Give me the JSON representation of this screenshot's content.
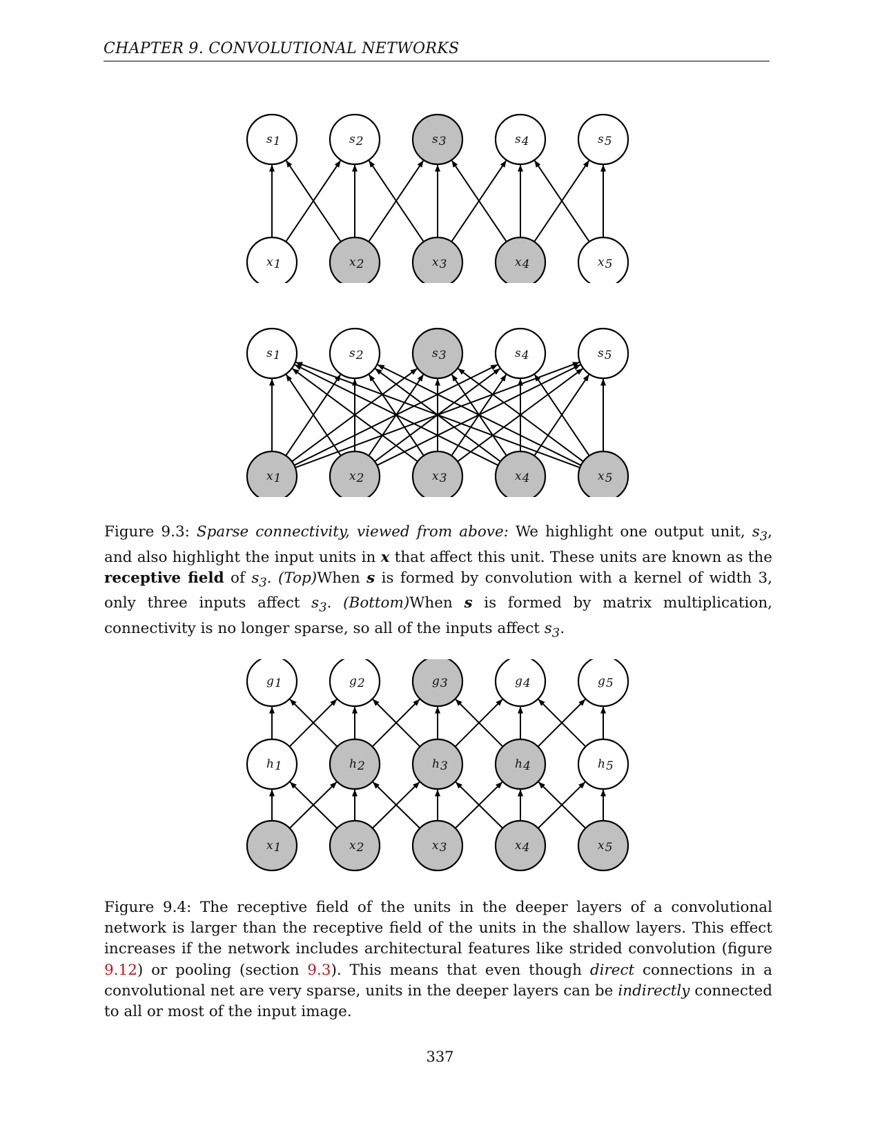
{
  "header": {
    "chapter": "CHAPTER 9.   CONVOLUTIONAL NETWORKS"
  },
  "colors": {
    "highlight_fill": "#c0c0c0",
    "plain_fill": "#ffffff",
    "stroke": "#000000",
    "link": "#c4141f"
  },
  "figure_9_3": {
    "top": {
      "output_letter": "s",
      "input_letter": "x",
      "indices": [
        "1",
        "2",
        "3",
        "4",
        "5"
      ],
      "highlighted_outputs": [
        3
      ],
      "highlighted_inputs": [
        2,
        3,
        4
      ],
      "connectivity": "kernel-width-3"
    },
    "bottom": {
      "output_letter": "s",
      "input_letter": "x",
      "indices": [
        "1",
        "2",
        "3",
        "4",
        "5"
      ],
      "highlighted_outputs": [
        3
      ],
      "highlighted_inputs": [
        1,
        2,
        3,
        4,
        5
      ],
      "connectivity": "full"
    },
    "caption": {
      "label": "Figure 9.3:",
      "italic_title": "Sparse connectivity, viewed from above:",
      "t1": " We highlight one output unit, ",
      "t2": ", and also highlight the input units in ",
      "t3": " that affect this unit. These units are known as the ",
      "bold": "receptive field",
      "t4": " of ",
      "t5": ". ",
      "top_tag": "(Top)",
      "t6": "When ",
      "t7": " is formed by convolution with a kernel of width 3, only three inputs affect ",
      "t8": ". ",
      "bottom_tag": "(Bottom)",
      "t9": "When ",
      "t10": " is formed by matrix multiplication, connectivity is no longer sparse, so all of the inputs affect ",
      "t11": ".",
      "sym_s3": "s",
      "sym_s3_sub": "3",
      "sym_x": "x",
      "sym_s": "s"
    }
  },
  "figure_9_4": {
    "layers": [
      {
        "letter": "g",
        "indices": [
          "1",
          "2",
          "3",
          "4",
          "5"
        ],
        "highlighted": [
          3
        ]
      },
      {
        "letter": "h",
        "indices": [
          "1",
          "2",
          "3",
          "4",
          "5"
        ],
        "highlighted": [
          2,
          3,
          4
        ]
      },
      {
        "letter": "x",
        "indices": [
          "1",
          "2",
          "3",
          "4",
          "5"
        ],
        "highlighted": [
          1,
          2,
          3,
          4,
          5
        ]
      }
    ],
    "caption": {
      "label": "Figure 9.4:",
      "t1": " The receptive field of the units in the deeper layers of a convolutional network is larger than the receptive field of the units in the shallow layers. This effect increases if the network includes architectural features like strided convolution (figure ",
      "ref1": "9.12",
      "t2": ") or pooling (section ",
      "ref2": "9.3",
      "t3": "). This means that even though ",
      "i1": "direct",
      "t4": " connections in a convolutional net are very sparse, units in the deeper layers can be ",
      "i2": "indirectly",
      "t5": " connected to all or most of the input image."
    }
  },
  "page_number": "337"
}
